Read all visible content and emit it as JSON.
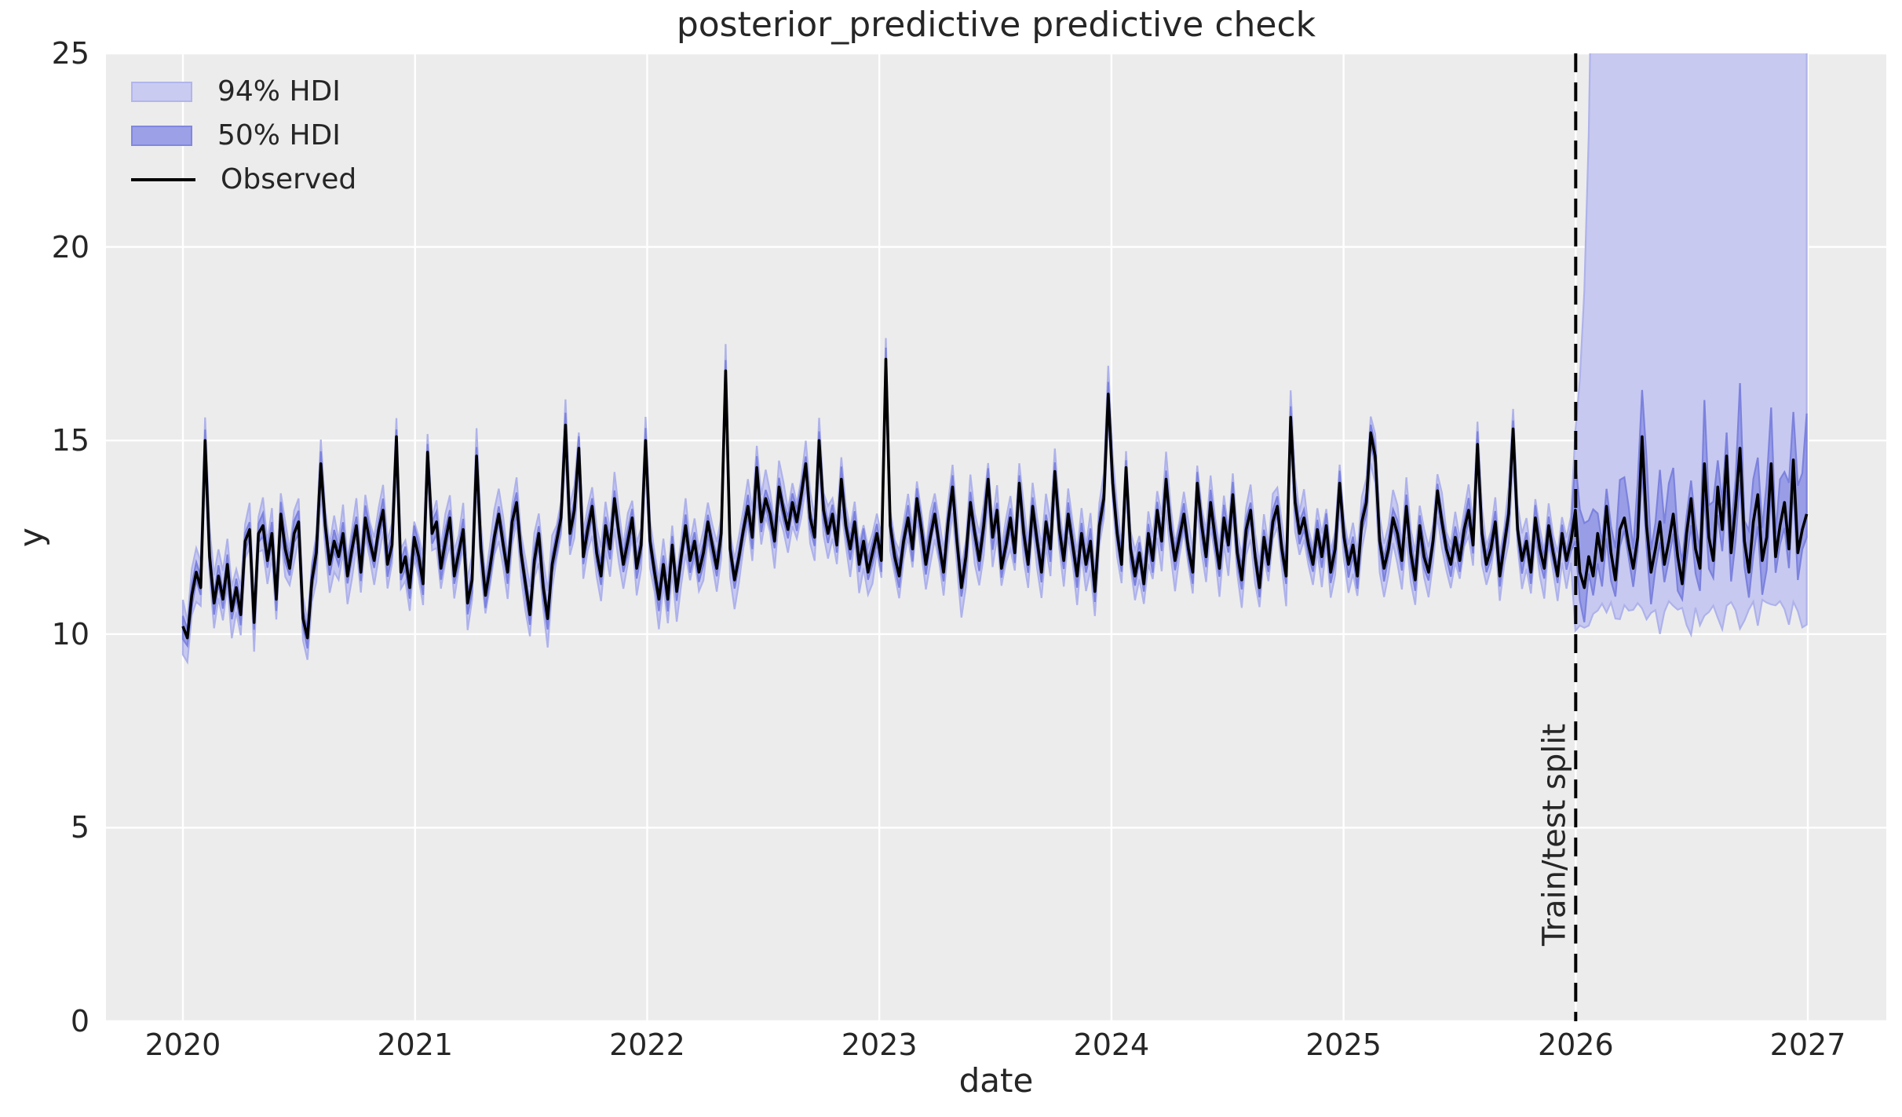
{
  "chart_data": {
    "type": "line",
    "title": "posterior_predictive predictive check",
    "xlabel": "date",
    "ylabel": "y",
    "xlim": [
      2019.6686,
      2027.338
    ],
    "ylim": [
      0,
      25
    ],
    "x_ticks": [
      2020,
      2021,
      2022,
      2023,
      2024,
      2025,
      2026,
      2027
    ],
    "y_ticks": [
      0,
      5,
      10,
      15,
      20,
      25
    ],
    "grid": "on",
    "legend_position": "upper left",
    "legend": [
      {
        "label": "94% HDI",
        "kind": "band",
        "fill": "#c9cbf1",
        "edge": "#b2b6ec"
      },
      {
        "label": "50% HDI",
        "kind": "band",
        "fill": "#9ca0e6",
        "edge": "#8287df"
      },
      {
        "label": "Observed",
        "kind": "line",
        "color": "#000000"
      }
    ],
    "split": {
      "x": 2026.0,
      "label": "Train/test split"
    },
    "series_start_year": 2020.0,
    "series_step_years": 0.0191651,
    "split_index": 313,
    "observed": [
      10.2,
      9.9,
      11.0,
      11.6,
      11.2,
      15.0,
      12.0,
      10.8,
      11.5,
      10.9,
      11.8,
      10.6,
      11.2,
      10.5,
      12.4,
      12.7,
      10.3,
      12.6,
      12.8,
      11.9,
      12.6,
      10.9,
      13.1,
      12.2,
      11.7,
      12.6,
      12.9,
      10.4,
      9.9,
      11.4,
      12.1,
      14.4,
      12.8,
      11.8,
      12.4,
      12.0,
      12.6,
      11.5,
      12.2,
      12.8,
      11.6,
      13.0,
      12.4,
      11.9,
      12.7,
      13.2,
      11.8,
      12.3,
      15.1,
      11.6,
      12.0,
      11.2,
      12.5,
      12.0,
      11.3,
      14.7,
      12.6,
      12.9,
      11.7,
      12.4,
      13.0,
      11.5,
      12.1,
      12.7,
      10.8,
      11.4,
      14.6,
      12.2,
      11.0,
      11.7,
      12.5,
      13.1,
      12.3,
      11.6,
      12.9,
      13.4,
      12.1,
      11.3,
      10.5,
      11.9,
      12.6,
      11.2,
      10.4,
      11.8,
      12.4,
      13.0,
      15.4,
      12.6,
      13.2,
      14.8,
      12.0,
      12.7,
      13.3,
      12.1,
      11.5,
      12.8,
      12.2,
      13.5,
      12.6,
      11.8,
      12.4,
      13.0,
      11.7,
      12.3,
      15.0,
      12.4,
      11.6,
      10.9,
      11.8,
      10.9,
      12.3,
      11.1,
      12.0,
      12.8,
      11.9,
      12.4,
      11.6,
      12.1,
      12.9,
      12.3,
      11.7,
      12.6,
      16.8,
      12.2,
      11.4,
      12.0,
      12.7,
      13.3,
      12.5,
      14.3,
      12.9,
      13.5,
      13.1,
      12.4,
      13.8,
      13.2,
      12.7,
      13.4,
      12.9,
      13.6,
      14.4,
      13.0,
      12.5,
      15.0,
      13.2,
      12.6,
      13.1,
      12.3,
      14.0,
      12.8,
      12.2,
      12.9,
      11.8,
      12.4,
      11.6,
      12.1,
      12.6,
      11.9,
      17.1,
      12.8,
      12.0,
      11.5,
      12.4,
      13.0,
      12.2,
      13.5,
      12.7,
      11.8,
      12.5,
      13.1,
      12.3,
      11.6,
      12.9,
      13.8,
      12.4,
      11.2,
      12.0,
      13.4,
      12.6,
      11.9,
      12.8,
      14.0,
      12.5,
      13.2,
      11.7,
      12.3,
      13.0,
      12.1,
      13.9,
      12.6,
      11.8,
      13.3,
      12.4,
      11.6,
      12.9,
      12.2,
      14.2,
      12.7,
      11.9,
      13.1,
      12.3,
      11.5,
      12.6,
      11.8,
      12.4,
      11.1,
      12.8,
      13.5,
      16.2,
      13.9,
      12.6,
      11.8,
      14.3,
      12.2,
      11.5,
      12.1,
      11.3,
      12.6,
      11.9,
      13.2,
      12.4,
      14.0,
      12.7,
      11.9,
      12.5,
      13.1,
      12.2,
      11.6,
      13.9,
      12.8,
      12.0,
      13.4,
      12.5,
      11.7,
      13.0,
      12.3,
      13.6,
      12.1,
      11.4,
      12.7,
      13.2,
      12.0,
      11.2,
      12.5,
      11.8,
      12.9,
      13.3,
      12.2,
      11.5,
      15.6,
      13.4,
      12.6,
      13.0,
      12.3,
      11.8,
      12.7,
      12.0,
      12.8,
      11.6,
      12.2,
      13.9,
      12.5,
      11.8,
      12.3,
      11.5,
      12.9,
      13.4,
      15.2,
      14.6,
      12.4,
      11.7,
      12.2,
      13.0,
      12.6,
      11.9,
      13.3,
      12.1,
      11.4,
      12.8,
      12.0,
      11.6,
      12.4,
      13.7,
      12.9,
      12.2,
      11.8,
      12.5,
      11.9,
      12.7,
      13.2,
      12.3,
      14.9,
      12.6,
      11.8,
      12.2,
      12.9,
      11.5,
      12.3,
      13.1,
      15.3,
      12.7,
      11.9,
      12.4,
      11.6,
      13.0,
      12.2,
      11.7,
      12.8,
      12.1,
      11.5,
      12.6,
      11.9,
      12.4,
      13.2,
      11.6,
      11.2,
      12.0,
      11.5,
      12.6,
      11.9,
      13.3,
      12.1,
      11.4,
      12.7,
      13.0,
      12.3,
      11.7,
      12.5,
      15.1,
      12.8,
      11.6,
      12.2,
      12.9,
      11.8,
      12.4,
      13.1,
      12.0,
      11.3,
      12.6,
      13.5,
      12.2,
      11.7,
      14.4,
      12.5,
      11.9,
      13.8,
      12.7,
      14.6,
      12.1,
      13.3,
      14.8,
      12.4,
      11.6,
      12.9,
      13.6,
      11.9,
      12.5,
      14.4,
      12.0,
      12.8,
      13.4,
      12.2,
      14.5,
      12.1,
      12.7,
      13.1
    ],
    "bands": {
      "hdi94": {
        "train_halfwidth_up": [
          0.4,
          0.75
        ],
        "train_halfwidth_down": [
          0.42,
          0.8
        ],
        "test_lower_level": 10.6,
        "test_upper_start": 13.5,
        "test_upper_growth_per_week": 1.75,
        "note": "94% interval hugs observed before split; upper bound explodes above plot top (>25) within ~5 weeks after split, lower bound flattens near 10.5"
      },
      "hdi50": {
        "train_halfwidth_up": [
          0.18,
          0.34
        ],
        "train_halfwidth_down": [
          0.18,
          0.34
        ],
        "test_halfwidth_up": [
          0.45,
          1.75
        ],
        "test_halfwidth_down": [
          0.3,
          0.9
        ],
        "test_last_upper_spike": 2.6
      }
    }
  },
  "colors": {
    "axes_bg": "#ececec",
    "grid": "#ffffff",
    "hdi94_fill": "#c7c9f0",
    "hdi94_edge": "#aeb2ea",
    "hdi50_fill": "#989de6",
    "hdi50_edge": "#7c82dd",
    "observed": "#000000",
    "split_line": "#000000",
    "text": "#262626"
  }
}
